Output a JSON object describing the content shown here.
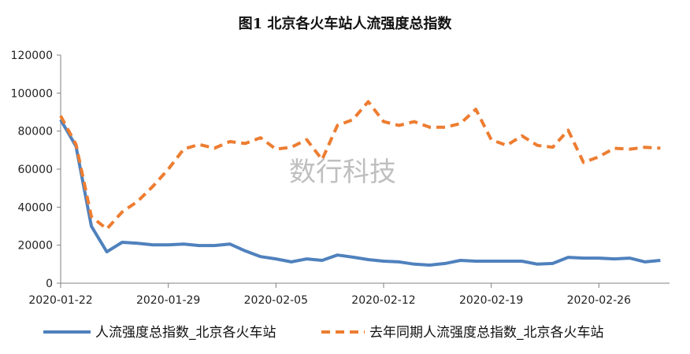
{
  "chart_data": {
    "type": "line",
    "title": "图1 北京各火车站人流强度总指数",
    "watermark": "数行科技",
    "ylim": [
      0,
      120000
    ],
    "y_ticks": [
      0,
      20000,
      40000,
      60000,
      80000,
      100000,
      120000
    ],
    "x_ticks": [
      "2020-01-22",
      "2020-01-29",
      "2020-02-05",
      "2020-02-12",
      "2020-02-19",
      "2020-02-26"
    ],
    "x": [
      "2020-01-22",
      "2020-01-23",
      "2020-01-24",
      "2020-01-25",
      "2020-01-26",
      "2020-01-27",
      "2020-01-28",
      "2020-01-29",
      "2020-01-30",
      "2020-01-31",
      "2020-02-01",
      "2020-02-02",
      "2020-02-03",
      "2020-02-04",
      "2020-02-05",
      "2020-02-06",
      "2020-02-07",
      "2020-02-08",
      "2020-02-09",
      "2020-02-10",
      "2020-02-11",
      "2020-02-12",
      "2020-02-13",
      "2020-02-14",
      "2020-02-15",
      "2020-02-16",
      "2020-02-17",
      "2020-02-18",
      "2020-02-19",
      "2020-02-20",
      "2020-02-21",
      "2020-02-22",
      "2020-02-23",
      "2020-02-24",
      "2020-02-25",
      "2020-02-26",
      "2020-02-27",
      "2020-02-28",
      "2020-02-29",
      "2020-03-01"
    ],
    "legend_position": "bottom",
    "series": [
      {
        "name": "人流强度总指数_北京各火车站",
        "color": "#4f81bd",
        "style": "solid",
        "values": [
          86000,
          72000,
          30000,
          16500,
          21500,
          21000,
          20200,
          20200,
          20600,
          19800,
          19800,
          20600,
          17000,
          14000,
          12800,
          11200,
          12800,
          12000,
          14800,
          13700,
          12400,
          11600,
          11200,
          10000,
          9500,
          10400,
          12000,
          11600,
          11600,
          11600,
          11600,
          10000,
          10400,
          13600,
          13200,
          13200,
          12800,
          13200,
          11200,
          12000
        ]
      },
      {
        "name": "去年同期人流强度总指数_北京各火车站",
        "color": "#ed7d31",
        "style": "dashed",
        "values": [
          88000,
          73000,
          35000,
          28500,
          37500,
          43000,
          51000,
          60000,
          70500,
          73000,
          71000,
          74500,
          73500,
          76500,
          70500,
          71500,
          75500,
          65000,
          83000,
          86000,
          95500,
          85000,
          83000,
          85000,
          82000,
          82000,
          84000,
          91500,
          75500,
          72500,
          77500,
          72500,
          71500,
          80500,
          63500,
          66500,
          71000,
          70500,
          71500,
          71000
        ]
      }
    ]
  }
}
